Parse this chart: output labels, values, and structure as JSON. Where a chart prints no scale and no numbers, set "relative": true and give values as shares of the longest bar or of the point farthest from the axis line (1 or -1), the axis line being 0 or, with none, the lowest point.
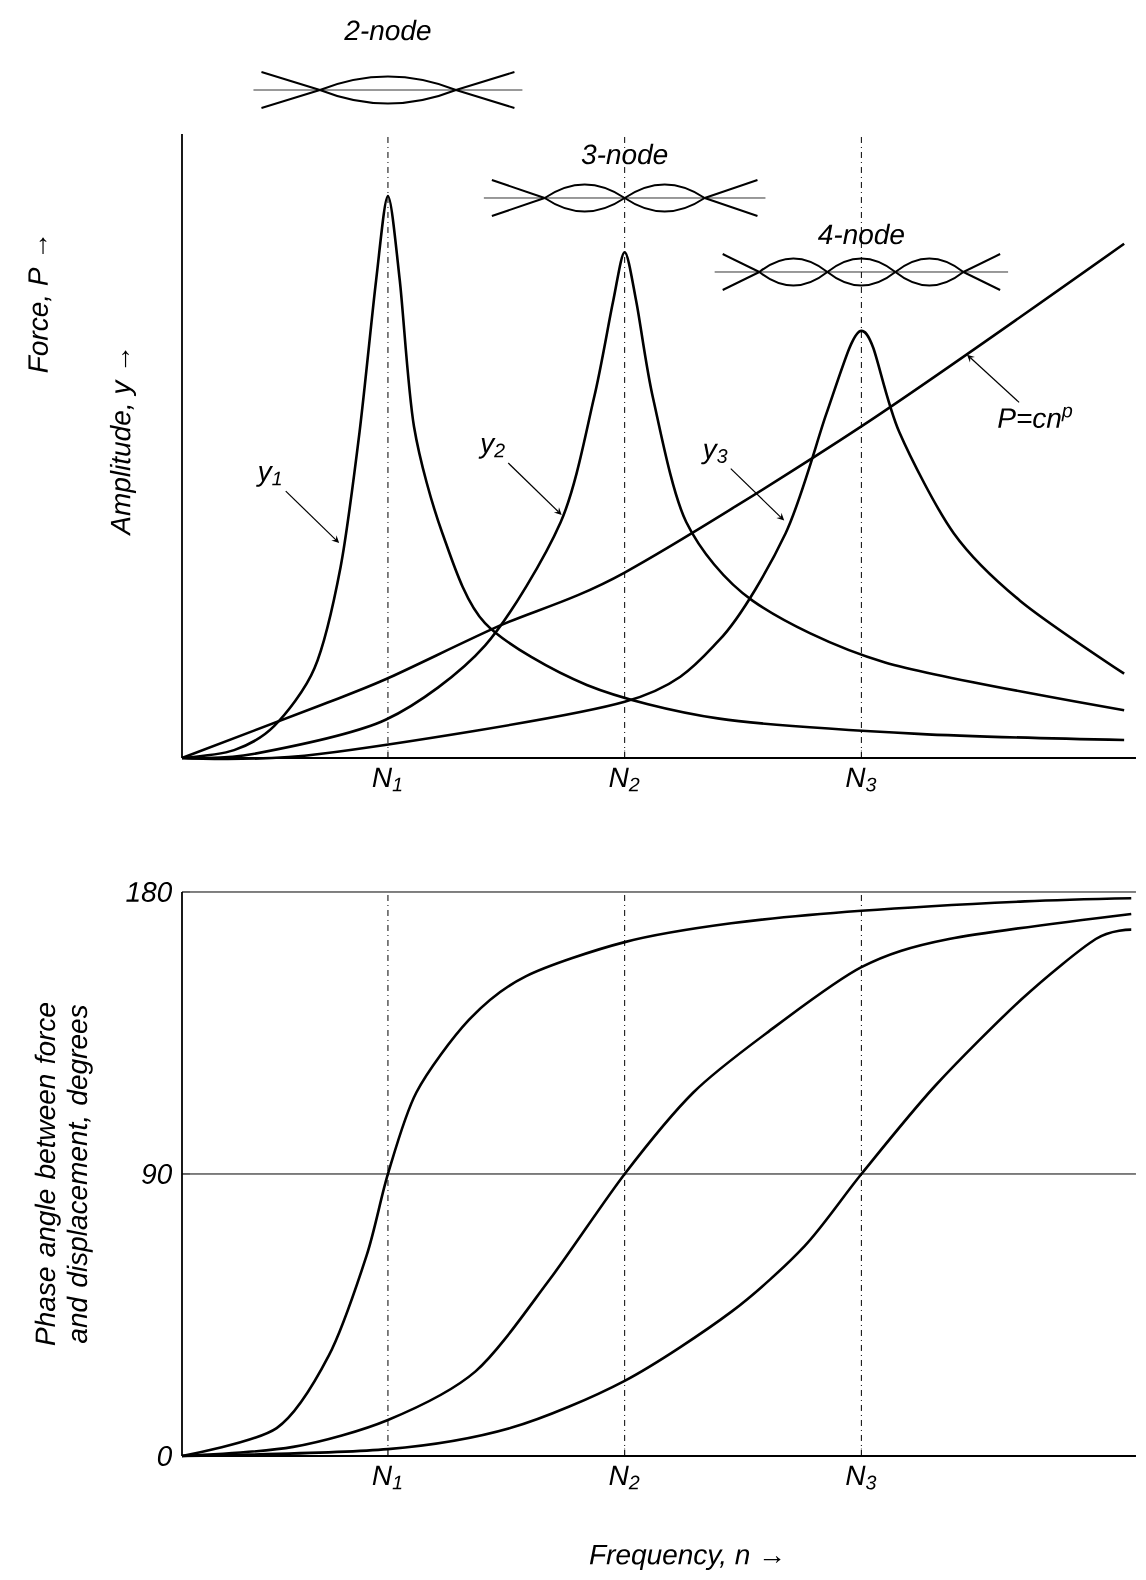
{
  "chart_data": [
    {
      "type": "line",
      "relative": true,
      "xlim": [
        0.13,
        4.16
      ],
      "xticks": [
        {
          "value": 1,
          "label": "N$_{1}$"
        },
        {
          "value": 2,
          "label": "N$_{2}$"
        },
        {
          "value": 3,
          "label": "N$_{3}$"
        }
      ],
      "tick_labels": "x",
      "ylabel": "Amplitude, y →",
      "annotations": [
        "2-node",
        "3-node",
        "4-node",
        "Force, P →",
        {
          "text": "y$_{1}$",
          "x": 0.8,
          "y": 0.38
        },
        {
          "text": "y$_{2}$",
          "x": 1.74,
          "y": 0.43
        },
        {
          "text": "y$_{3}$",
          "x": 2.68,
          "y": 0.42
        },
        {
          "text": "P=cn$^{p}$",
          "x": 3.44,
          "y": 0.72
        }
      ],
      "ref_lines": [
        {
          "axis": "x",
          "value": 1,
          "line_style": "dashed"
        },
        {
          "axis": "x",
          "value": 2,
          "line_style": "dashed"
        },
        {
          "axis": "x",
          "value": 3,
          "line_style": "dashed"
        }
      ],
      "series": [
        {
          "color": "#000000",
          "x": [
            0.13,
            0.35,
            0.52,
            0.69,
            0.8,
            0.88,
            0.95,
            1.0,
            1.05,
            1.11,
            1.23,
            1.41,
            1.84,
            2.4,
            3.24,
            4.11
          ],
          "values": [
            0,
            0.014,
            0.057,
            0.16,
            0.34,
            0.58,
            0.85,
            1.0,
            0.85,
            0.59,
            0.4,
            0.24,
            0.13,
            0.07,
            0.043,
            0.032
          ]
        },
        {
          "color": "#000000",
          "x": [
            0.13,
            0.43,
            0.99,
            1.41,
            1.73,
            1.87,
            1.95,
            2.0,
            2.05,
            2.12,
            2.26,
            2.54,
            3.1,
            4.11
          ],
          "values": [
            0,
            0.007,
            0.068,
            0.2,
            0.42,
            0.64,
            0.81,
            0.9,
            0.81,
            0.64,
            0.42,
            0.28,
            0.17,
            0.085
          ]
        },
        {
          "color": "#000000",
          "x": [
            0.13,
            0.71,
            2.0,
            2.4,
            2.68,
            2.85,
            2.95,
            3.0,
            3.05,
            3.16,
            3.39,
            3.67,
            4.11
          ],
          "values": [
            0,
            0.007,
            0.1,
            0.21,
            0.4,
            0.61,
            0.73,
            0.76,
            0.73,
            0.58,
            0.4,
            0.28,
            0.15
          ]
        },
        {
          "color": "#000000",
          "x": [
            0.13,
            0.71,
            0.99,
            1.47,
            2.0,
            3.0,
            4.11
          ],
          "values": [
            0,
            0.093,
            0.14,
            0.235,
            0.33,
            0.59,
            0.915
          ]
        }
      ]
    },
    {
      "type": "line",
      "xlim": [
        0.13,
        4.16
      ],
      "ylim": [
        0,
        180
      ],
      "yticks": [
        0,
        90,
        180
      ],
      "xticks": [
        {
          "value": 1,
          "label": "N$_{1}$"
        },
        {
          "value": 2,
          "label": "N$_{2}$"
        },
        {
          "value": 3,
          "label": "N$_{3}$"
        }
      ],
      "xlabel": "Frequency, n →",
      "ylabel": "Phase angle between force and displacement, degrees",
      "ref_lines": [
        {
          "axis": "y",
          "value": 90,
          "line_style": "solid"
        },
        {
          "axis": "y",
          "value": 180,
          "line_style": "solid"
        },
        {
          "axis": "x",
          "value": 1,
          "line_style": "dashed"
        },
        {
          "axis": "x",
          "value": 2,
          "line_style": "dashed"
        },
        {
          "axis": "x",
          "value": 3,
          "line_style": "dashed"
        }
      ],
      "series": [
        {
          "color": "#000000",
          "x": [
            0.13,
            0.53,
            0.75,
            0.91,
            1.0,
            1.12,
            1.34,
            1.58,
            2.0,
            2.45,
            3.0,
            3.69,
            4.14
          ],
          "values": [
            0,
            8.9,
            32,
            64,
            90,
            116,
            139,
            153,
            164,
            170,
            174,
            177,
            178
          ]
        },
        {
          "color": "#000000",
          "x": [
            0.13,
            0.6,
            1.0,
            1.37,
            1.68,
            2.0,
            2.29,
            2.6,
            3.0,
            3.37,
            4.14
          ],
          "values": [
            0,
            2.9,
            11.5,
            27,
            56,
            90,
            116,
            135,
            156,
            165,
            173
          ]
        },
        {
          "color": "#000000",
          "x": [
            0.13,
            1.0,
            1.52,
            2.0,
            2.45,
            2.76,
            3.0,
            3.31,
            3.68,
            3.99,
            4.14
          ],
          "values": [
            0,
            2.2,
            9,
            24,
            46,
            67,
            90,
            118,
            146,
            165,
            168
          ]
        }
      ]
    }
  ]
}
